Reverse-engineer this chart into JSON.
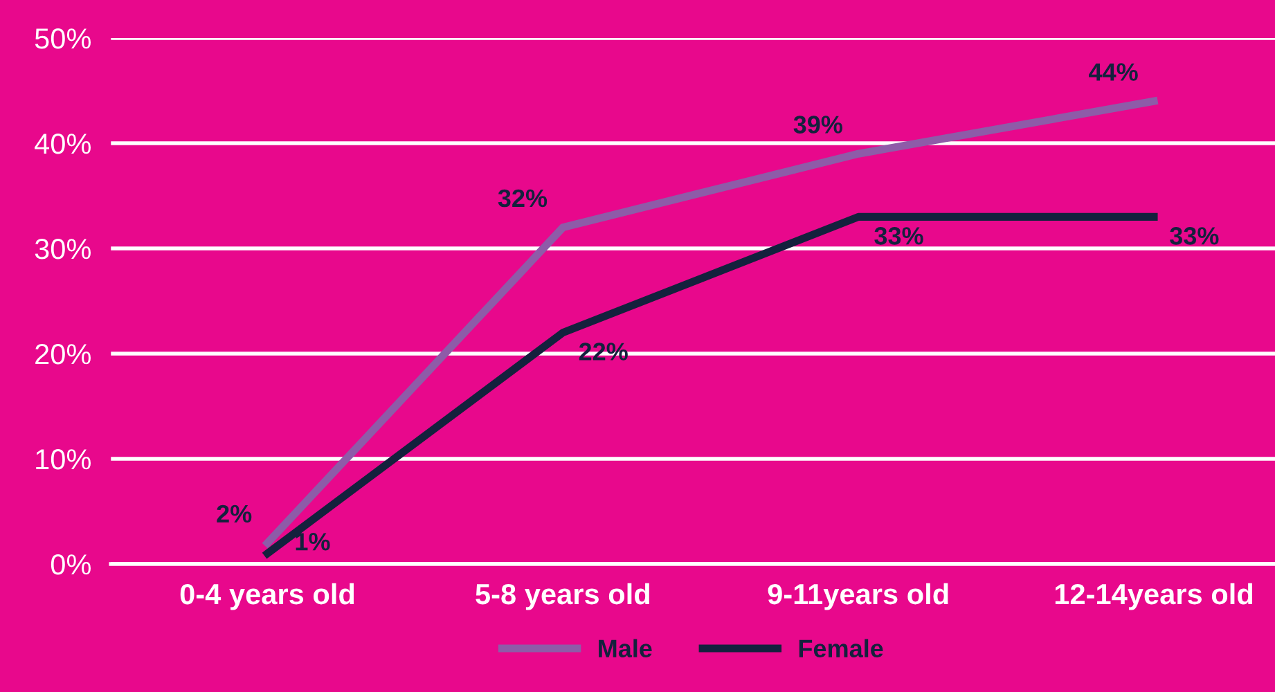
{
  "chart_data": {
    "type": "line",
    "categories": [
      "0-4 years old",
      "5-8 years old",
      "9-11years old",
      "12-14years old"
    ],
    "series": [
      {
        "name": "Male",
        "color": "#8e5ba8",
        "values": [
          2,
          32,
          39,
          44
        ],
        "value_labels": [
          "2%",
          "32%",
          "39%",
          "44%"
        ]
      },
      {
        "name": "Female",
        "color": "#14213d",
        "values": [
          1,
          22,
          33,
          33
        ],
        "value_labels": [
          "1%",
          "22%",
          "33%",
          "33%"
        ]
      }
    ],
    "ylim": [
      0,
      50
    ],
    "yticks": [
      {
        "value": 0,
        "label": "0%"
      },
      {
        "value": 10,
        "label": "10%"
      },
      {
        "value": 20,
        "label": "20%"
      },
      {
        "value": 30,
        "label": "30%"
      },
      {
        "value": 40,
        "label": "40%"
      },
      {
        "value": 50,
        "label": "50%"
      }
    ],
    "grid": "y",
    "legend": "bottom",
    "marker": "none",
    "line_style": "solid"
  }
}
